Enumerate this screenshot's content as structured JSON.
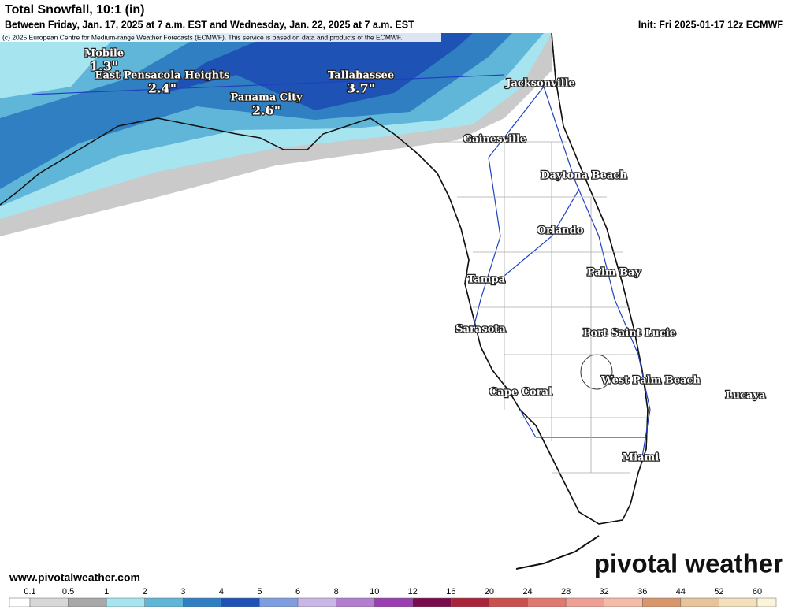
{
  "header": {
    "title": "Total Snowfall, 10:1 (in)",
    "subtitle": "Between Friday, Jan. 17, 2025 at 7 a.m. EST and Wednesday, Jan. 22, 2025 at 7 a.m. EST",
    "init": "Init: Fri 2025-01-17 12z ECMWF",
    "credit": "(c) 2025 European Centre for Medium-range Weather Forecasts (ECMWF). This service is based on data and products of the ECMWF."
  },
  "cities": [
    {
      "name": "Mobile",
      "amount": "1.3\""
    },
    {
      "name": "East Pensacola Heights",
      "amount": "2.4\""
    },
    {
      "name": "Panama City",
      "amount": "2.6\""
    },
    {
      "name": "Tallahassee",
      "amount": "3.7\""
    },
    {
      "name": "Jacksonville"
    },
    {
      "name": "Gainesville"
    },
    {
      "name": "Daytona Beach"
    },
    {
      "name": "Orlando"
    },
    {
      "name": "Palm Bay"
    },
    {
      "name": "Tampa"
    },
    {
      "name": "Sarasota"
    },
    {
      "name": "Port Saint Lucie"
    },
    {
      "name": "West Palm Beach"
    },
    {
      "name": "Lucaya"
    },
    {
      "name": "Cape Coral"
    },
    {
      "name": "Miami"
    }
  ],
  "footer": {
    "url": "www.pivotalweather.com",
    "logo": "pivotal weather"
  },
  "colorbar": {
    "ticks": [
      0.1,
      0.5,
      1,
      2,
      3,
      4,
      5,
      6,
      8,
      10,
      12,
      16,
      20,
      24,
      28,
      32,
      36,
      44,
      52,
      60
    ],
    "colors": [
      "#ffffff",
      "#d8d8d8",
      "#a8a8a8",
      "#a6e4f0",
      "#5fb6d9",
      "#2f7fc2",
      "#1f52b5",
      "#7f9ee0",
      "#c9b6e6",
      "#b37ed0",
      "#9a3fb0",
      "#7a0c4e",
      "#a8243a",
      "#c8514e",
      "#e07a70",
      "#eea096",
      "#f4bba8",
      "#d9966b",
      "#e8c49a",
      "#f4e0bc",
      "#fbf3dc"
    ]
  }
}
